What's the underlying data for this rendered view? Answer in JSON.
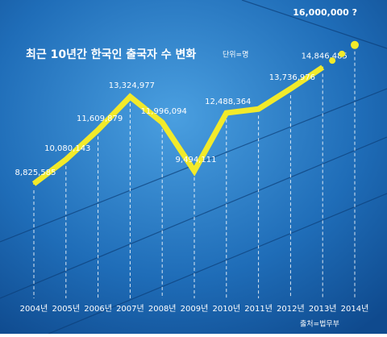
{
  "chart_data": {
    "type": "line",
    "title": "최근 10년간 한국인 출국자 수 변화",
    "unit_note": "단위=명",
    "source": "출처=법무부",
    "categories": [
      "2004년",
      "2005년",
      "2006년",
      "2007년",
      "2008년",
      "2009년",
      "2010년",
      "2011년",
      "2012년",
      "2013년",
      "2014년"
    ],
    "series": [
      {
        "color": "#f2ea2a",
        "values": [
          8825585,
          10080143,
          11609879,
          13324977,
          11996094,
          9494111,
          12488364,
          12690000,
          13736976,
          14846485,
          16000000
        ],
        "value_labels": [
          "8,825,585",
          "10,080,143",
          "11,609,879",
          "13,324,977",
          "11,996,094",
          "9,494,111",
          "12,488,364",
          null,
          "13,736,976",
          "14,846,485",
          "16,000,000 ?"
        ],
        "projected": [
          false,
          false,
          false,
          false,
          false,
          false,
          false,
          false,
          false,
          false,
          true
        ]
      }
    ]
  }
}
